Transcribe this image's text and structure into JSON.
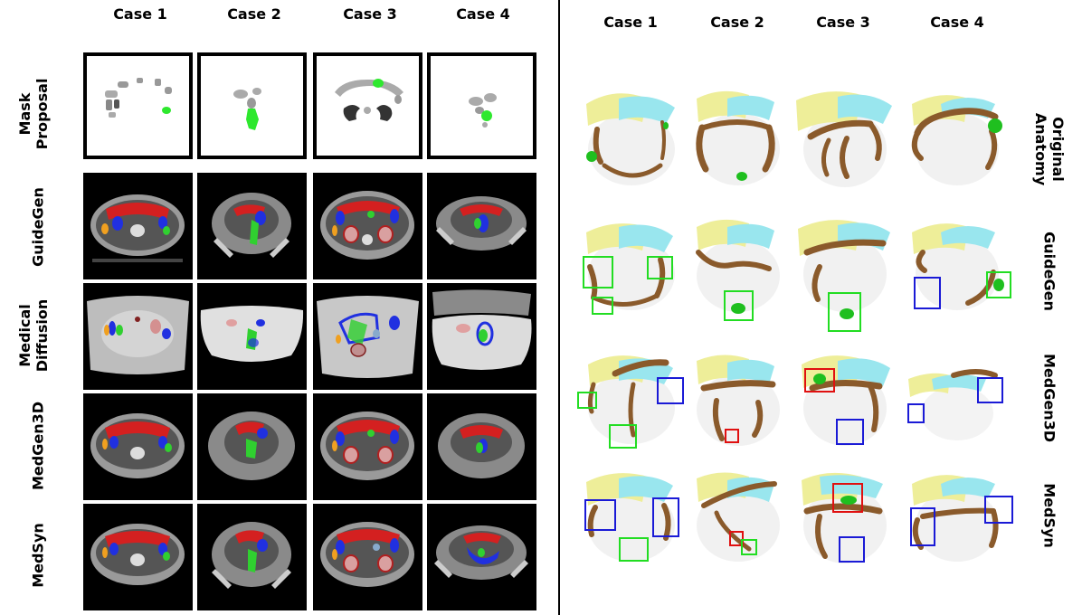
{
  "left_panel": {
    "column_labels": [
      "Case 1",
      "Case 2",
      "Case 3",
      "Case 4"
    ],
    "row_labels": [
      {
        "line1": "Mask",
        "line2": "Proposal"
      },
      {
        "line1": "GuideGen",
        "line2": ""
      },
      {
        "line1": "Medical",
        "line2": "Diffusion"
      },
      {
        "line1": "MedGen3D",
        "line2": ""
      },
      {
        "line1": "MedSyn",
        "line2": ""
      }
    ]
  },
  "right_panel": {
    "column_labels": [
      "Case 1",
      "Case 2",
      "Case 3",
      "Case 4"
    ],
    "row_labels": [
      {
        "line1": "Original",
        "line2": "Anatomy"
      },
      {
        "line1": "GuideGen",
        "line2": ""
      },
      {
        "line1": "MedGen3D",
        "line2": ""
      },
      {
        "line1": "MedSyn",
        "line2": ""
      }
    ]
  },
  "colors": {
    "box_green": "#22dd22",
    "box_blue": "#1a1ad6",
    "box_red": "#e01010",
    "colon": "#8a5a2b",
    "liver": "#eeee99",
    "stomach": "#99e6ee",
    "tumor": "#1fbf1f"
  }
}
